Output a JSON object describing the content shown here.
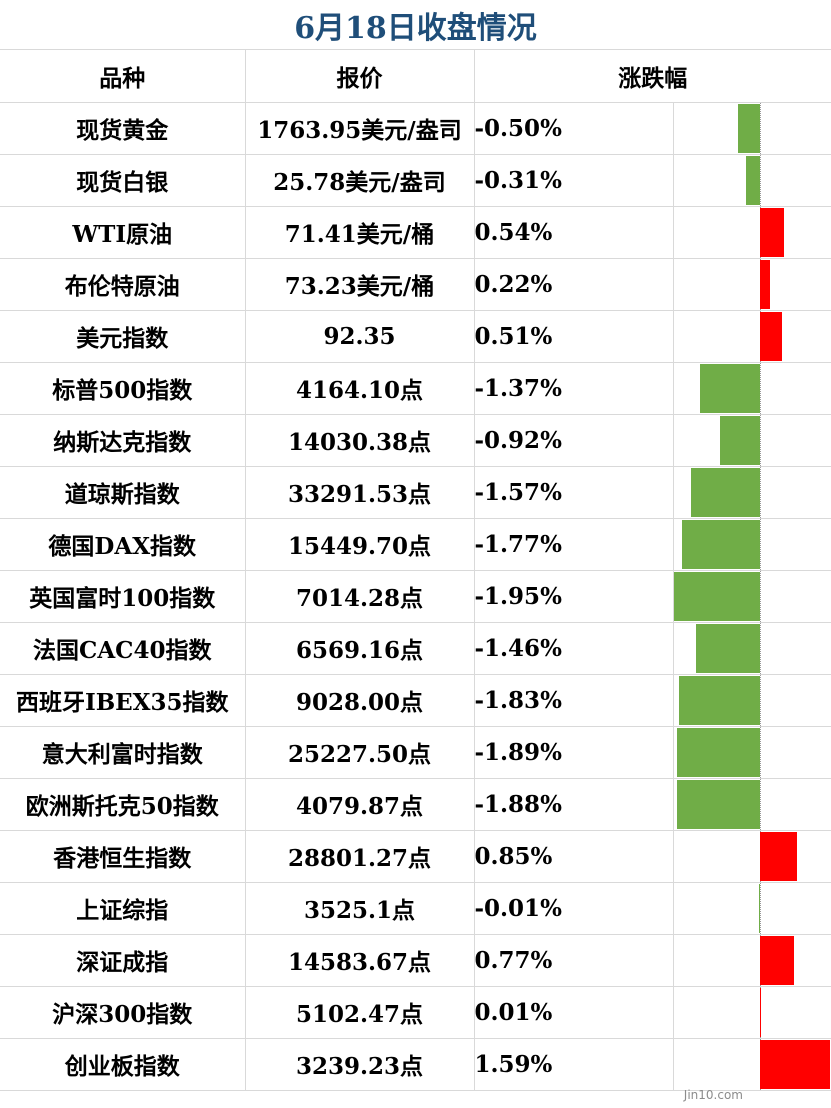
{
  "title": "6月18日收盘情况",
  "headers": {
    "name": "品种",
    "price": "报价",
    "change": "涨跌幅"
  },
  "rows": [
    {
      "name": "现货黄金",
      "price": "1763.95美元/盎司",
      "change": "-0.50%"
    },
    {
      "name": "现货白银",
      "price": "25.78美元/盎司",
      "change": "-0.31%"
    },
    {
      "name": "WTI原油",
      "price": "71.41美元/桶",
      "change": "0.54%"
    },
    {
      "name": "布伦特原油",
      "price": "73.23美元/桶",
      "change": "0.22%"
    },
    {
      "name": "美元指数",
      "price": "92.35",
      "change": "0.51%"
    },
    {
      "name": "标普500指数",
      "price": "4164.10点",
      "change": "-1.37%"
    },
    {
      "name": "纳斯达克指数",
      "price": "14030.38点",
      "change": "-0.92%"
    },
    {
      "name": "道琼斯指数",
      "price": "33291.53点",
      "change": "-1.57%"
    },
    {
      "name": "德国DAX指数",
      "price": "15449.70点",
      "change": "-1.77%"
    },
    {
      "name": "英国富时100指数",
      "price": "7014.28点",
      "change": "-1.95%"
    },
    {
      "name": "法国CAC40指数",
      "price": "6569.16点",
      "change": "-1.46%"
    },
    {
      "name": "西班牙IBEX35指数",
      "price": "9028.00点",
      "change": "-1.83%"
    },
    {
      "name": "意大利富时指数",
      "price": "25227.50点",
      "change": "-1.89%"
    },
    {
      "name": "欧洲斯托克50指数",
      "price": "4079.87点",
      "change": "-1.88%"
    },
    {
      "name": "香港恒生指数",
      "price": "28801.27点",
      "change": "0.85%"
    },
    {
      "name": "上证综指",
      "price": "3525.1点",
      "change": "-0.01%"
    },
    {
      "name": "深证成指",
      "price": "14583.67点",
      "change": "0.77%"
    },
    {
      "name": "沪深300指数",
      "price": "5102.47点",
      "change": "0.01%"
    },
    {
      "name": "创业板指数",
      "price": "3239.23点",
      "change": "1.59%"
    }
  ],
  "bar_values": [
    -0.5,
    -0.31,
    0.54,
    0.22,
    0.51,
    -1.37,
    -0.92,
    -1.57,
    -1.77,
    -1.95,
    -1.46,
    -1.83,
    -1.89,
    -1.88,
    0.85,
    -0.01,
    0.77,
    0.01,
    1.59
  ],
  "colors": {
    "title": "#1f4e79",
    "negative": "#70ad47",
    "positive": "#ff0000"
  },
  "watermark": "Jin10.com"
}
